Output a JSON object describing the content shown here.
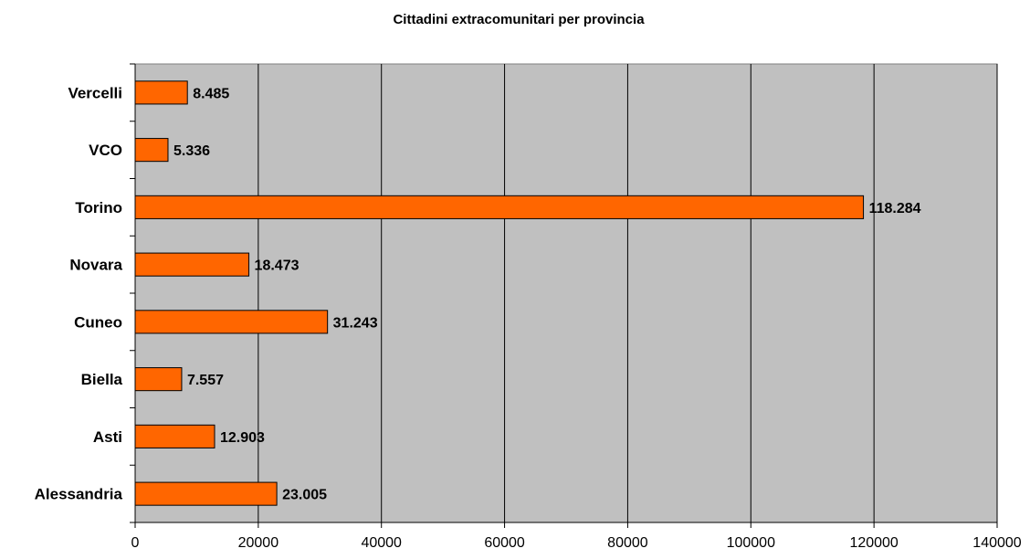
{
  "chart_data": {
    "type": "bar",
    "orientation": "horizontal",
    "title": "Cittadini extracomunitari per provincia",
    "categories": [
      "Alessandria",
      "Asti",
      "Biella",
      "Cuneo",
      "Novara",
      "Torino",
      "VCO",
      "Vercelli"
    ],
    "values": [
      23005,
      12903,
      7557,
      31243,
      18473,
      118284,
      5336,
      8485
    ],
    "data_labels": [
      "23.005",
      "12.903",
      "7.557",
      "31.243",
      "18.473",
      "118.284",
      "5.336",
      "8.485"
    ],
    "xlabel": "",
    "ylabel": "",
    "xlim": [
      0,
      140000
    ],
    "x_ticks": [
      "0",
      "20000",
      "40000",
      "60000",
      "80000",
      "100000",
      "120000",
      "140000"
    ],
    "grid": true,
    "legend": false,
    "bar_color": "#ff6600",
    "plot_background": "#c0c0c0"
  }
}
